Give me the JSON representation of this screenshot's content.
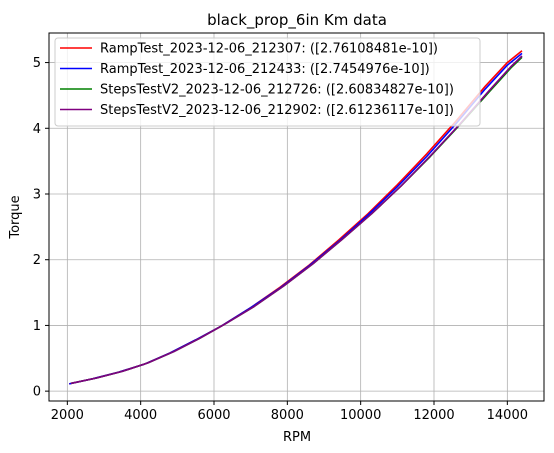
{
  "chart_data": {
    "type": "line",
    "title": "black_prop_6in Km data",
    "xlabel": "RPM",
    "ylabel": "Torque",
    "xlim": [
      1500,
      15000
    ],
    "ylim": [
      -0.15,
      5.45
    ],
    "xticks": [
      2000,
      4000,
      6000,
      8000,
      10000,
      12000,
      14000
    ],
    "yticks": [
      0,
      1,
      2,
      3,
      4,
      5
    ],
    "grid": true,
    "legend_position": "top-left",
    "series": [
      {
        "name": "RampTest_2023-12-06_212307: ([2.76108481e-10])",
        "color": "#ff0000",
        "x": [
          2050,
          2700,
          3400,
          4100,
          4800,
          5500,
          6200,
          7000,
          7800,
          8600,
          9400,
          10200,
          11000,
          11800,
          12600,
          13400,
          14000,
          14400
        ],
        "y": [
          0.11,
          0.19,
          0.29,
          0.41,
          0.58,
          0.78,
          0.99,
          1.27,
          1.58,
          1.92,
          2.3,
          2.7,
          3.14,
          3.61,
          4.11,
          4.64,
          5.0,
          5.18
        ]
      },
      {
        "name": "RampTest_2023-12-06_212433: ([2.7454976e-10])",
        "color": "#0000ff",
        "x": [
          2050,
          2700,
          3400,
          4100,
          4800,
          5500,
          6200,
          7000,
          7800,
          8600,
          9400,
          10200,
          11000,
          11800,
          12600,
          13400,
          14000,
          14400
        ],
        "y": [
          0.11,
          0.19,
          0.29,
          0.41,
          0.58,
          0.78,
          0.99,
          1.27,
          1.57,
          1.91,
          2.28,
          2.68,
          3.11,
          3.57,
          4.07,
          4.6,
          4.96,
          5.14
        ]
      },
      {
        "name": "StepsTestV2_2023-12-06_212726: ([2.60834827e-10])",
        "color": "#008000",
        "x": [
          2100,
          2800,
          3500,
          4200,
          4900,
          5600,
          6300,
          7100,
          7900,
          8700,
          9500,
          10300,
          11100,
          11900,
          12700,
          13500,
          14100,
          14400
        ],
        "y": [
          0.12,
          0.2,
          0.3,
          0.43,
          0.6,
          0.8,
          1.02,
          1.29,
          1.6,
          1.94,
          2.31,
          2.7,
          3.12,
          3.57,
          4.05,
          4.55,
          4.92,
          5.08
        ]
      },
      {
        "name": "StepsTestV2_2023-12-06_212902: ([2.61236117e-10])",
        "color": "#800080",
        "x": [
          2100,
          2800,
          3500,
          4200,
          4900,
          5600,
          6300,
          7100,
          7900,
          8700,
          9500,
          10300,
          11100,
          11900,
          12700,
          13500,
          14100,
          14400
        ],
        "y": [
          0.12,
          0.2,
          0.3,
          0.43,
          0.6,
          0.8,
          1.02,
          1.29,
          1.6,
          1.94,
          2.31,
          2.7,
          3.12,
          3.58,
          4.06,
          4.57,
          4.94,
          5.1
        ]
      }
    ]
  }
}
